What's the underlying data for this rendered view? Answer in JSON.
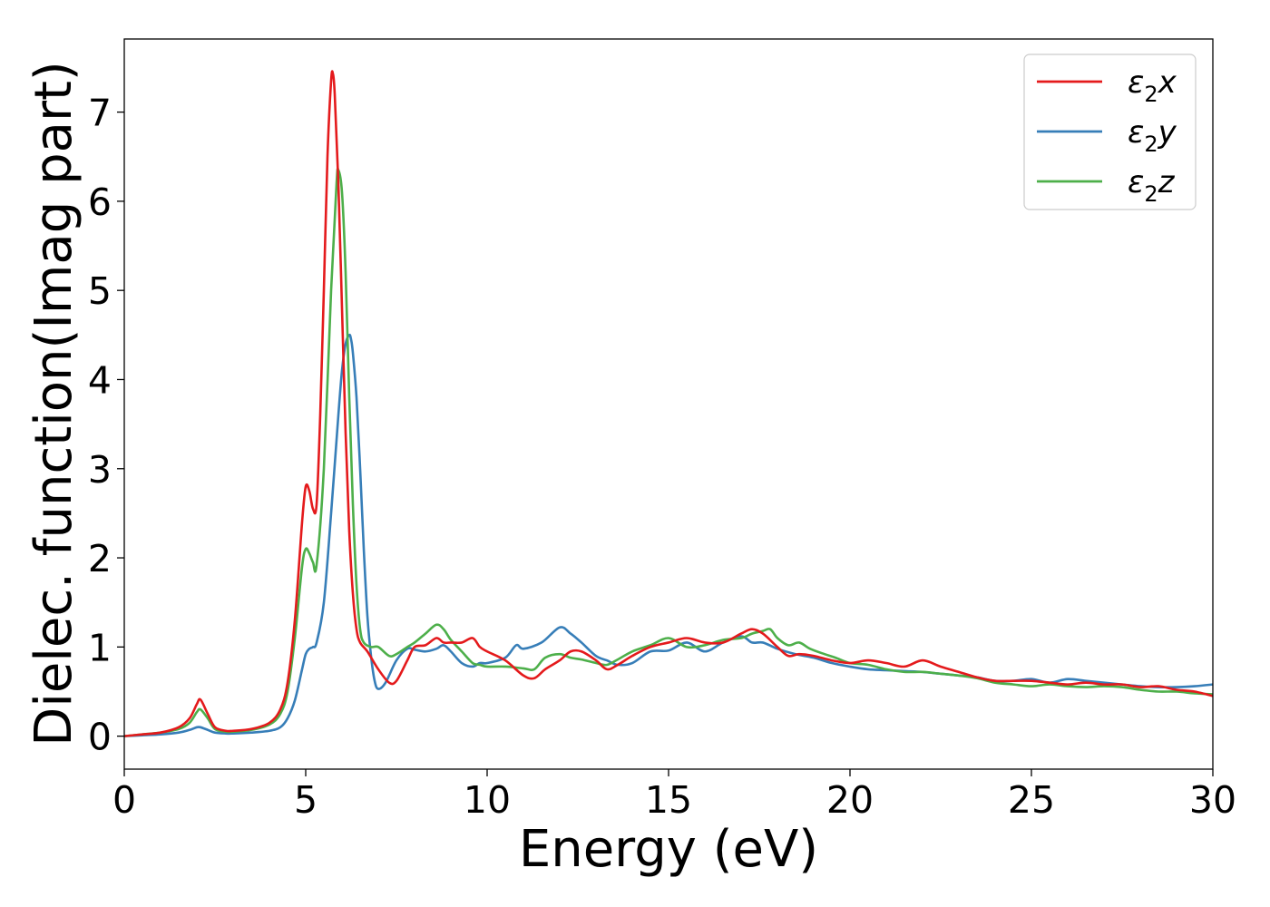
{
  "chart_data": {
    "type": "line",
    "title": "",
    "xlabel": "Energy (eV)",
    "ylabel": "Dielec. function(Imag part)",
    "xlim": [
      0,
      30
    ],
    "ylim": [
      -0.37,
      7.82
    ],
    "x_ticks": [
      0,
      5,
      10,
      15,
      20,
      25,
      30
    ],
    "y_ticks": [
      0,
      1,
      2,
      3,
      4,
      5,
      6,
      7
    ],
    "grid": false,
    "legend_position": "top-right",
    "series": [
      {
        "name": "ε₂x",
        "legend_base": "ε",
        "legend_sub": "2",
        "legend_suffix": "x",
        "color": "#e41a1c",
        "x": [
          0,
          0.5,
          1.0,
          1.5,
          1.8,
          2.0,
          2.1,
          2.3,
          2.5,
          2.8,
          3.0,
          3.5,
          4.0,
          4.3,
          4.5,
          4.7,
          4.9,
          5.0,
          5.1,
          5.2,
          5.3,
          5.4,
          5.5,
          5.6,
          5.7,
          5.75,
          5.8,
          5.9,
          6.0,
          6.1,
          6.2,
          6.3,
          6.4,
          6.5,
          6.7,
          7.0,
          7.3,
          7.5,
          7.8,
          8.0,
          8.3,
          8.6,
          8.8,
          9.0,
          9.3,
          9.6,
          9.8,
          10.0,
          10.5,
          11.0,
          11.3,
          11.6,
          12.0,
          12.3,
          12.6,
          13.0,
          13.3,
          13.6,
          14.0,
          14.5,
          15.0,
          15.5,
          16.0,
          16.5,
          17.0,
          17.3,
          17.6,
          18.0,
          18.3,
          18.6,
          19.0,
          19.5,
          20.0,
          20.5,
          21.0,
          21.5,
          22.0,
          22.5,
          23.0,
          23.5,
          24.0,
          24.5,
          25.0,
          25.5,
          26.0,
          26.5,
          27.0,
          27.5,
          28.0,
          28.5,
          29.0,
          29.5,
          30.0
        ],
        "y": [
          0.0,
          0.02,
          0.04,
          0.1,
          0.2,
          0.36,
          0.41,
          0.25,
          0.1,
          0.06,
          0.06,
          0.08,
          0.15,
          0.3,
          0.6,
          1.3,
          2.4,
          2.8,
          2.75,
          2.55,
          2.6,
          3.6,
          5.0,
          6.5,
          7.35,
          7.43,
          7.2,
          6.2,
          4.8,
          3.4,
          2.3,
          1.6,
          1.2,
          1.05,
          0.95,
          0.75,
          0.6,
          0.62,
          0.85,
          1.0,
          1.02,
          1.1,
          1.05,
          1.05,
          1.05,
          1.1,
          1.0,
          0.95,
          0.85,
          0.68,
          0.65,
          0.75,
          0.85,
          0.95,
          0.95,
          0.85,
          0.75,
          0.8,
          0.9,
          1.0,
          1.05,
          1.1,
          1.05,
          1.05,
          1.15,
          1.2,
          1.15,
          1.0,
          0.9,
          0.92,
          0.9,
          0.85,
          0.82,
          0.85,
          0.82,
          0.78,
          0.85,
          0.78,
          0.72,
          0.66,
          0.62,
          0.62,
          0.62,
          0.6,
          0.58,
          0.6,
          0.58,
          0.58,
          0.55,
          0.56,
          0.52,
          0.5,
          0.45
        ]
      },
      {
        "name": "ε₂y",
        "legend_base": "ε",
        "legend_sub": "2",
        "legend_suffix": "y",
        "color": "#377eb8",
        "x": [
          0,
          0.5,
          1.0,
          1.5,
          1.8,
          2.0,
          2.1,
          2.3,
          2.5,
          2.8,
          3.0,
          3.5,
          4.0,
          4.3,
          4.5,
          4.7,
          4.9,
          5.0,
          5.1,
          5.2,
          5.3,
          5.5,
          5.7,
          5.9,
          6.0,
          6.1,
          6.2,
          6.25,
          6.3,
          6.4,
          6.5,
          6.6,
          6.7,
          6.8,
          6.9,
          7.0,
          7.2,
          7.5,
          7.8,
          8.0,
          8.3,
          8.6,
          8.8,
          9.0,
          9.3,
          9.6,
          9.8,
          10.0,
          10.5,
          10.8,
          11.0,
          11.5,
          12.0,
          12.3,
          12.6,
          13.0,
          13.3,
          13.6,
          14.0,
          14.5,
          15.0,
          15.5,
          16.0,
          16.5,
          17.0,
          17.3,
          17.6,
          18.0,
          18.5,
          19.0,
          19.5,
          20.0,
          20.5,
          21.0,
          21.5,
          22.0,
          22.5,
          23.0,
          23.5,
          24.0,
          24.5,
          25.0,
          25.5,
          26.0,
          26.5,
          27.0,
          27.5,
          28.0,
          28.5,
          29.0,
          29.5,
          30.0
        ],
        "y": [
          0.0,
          0.01,
          0.02,
          0.04,
          0.07,
          0.1,
          0.1,
          0.07,
          0.04,
          0.03,
          0.03,
          0.04,
          0.06,
          0.1,
          0.2,
          0.4,
          0.75,
          0.92,
          0.98,
          1.0,
          1.05,
          1.5,
          2.5,
          3.6,
          4.1,
          4.4,
          4.5,
          4.45,
          4.3,
          3.8,
          3.0,
          2.1,
          1.35,
          0.9,
          0.62,
          0.53,
          0.6,
          0.85,
          0.98,
          0.97,
          0.95,
          0.98,
          1.02,
          0.95,
          0.82,
          0.78,
          0.82,
          0.82,
          0.88,
          1.02,
          0.98,
          1.05,
          1.22,
          1.15,
          1.05,
          0.9,
          0.85,
          0.8,
          0.82,
          0.95,
          0.96,
          1.05,
          0.95,
          1.05,
          1.12,
          1.05,
          1.05,
          0.98,
          0.92,
          0.88,
          0.82,
          0.78,
          0.75,
          0.74,
          0.73,
          0.72,
          0.7,
          0.68,
          0.66,
          0.62,
          0.62,
          0.64,
          0.6,
          0.64,
          0.62,
          0.6,
          0.58,
          0.56,
          0.55,
          0.55,
          0.56,
          0.58
        ]
      },
      {
        "name": "ε₂z",
        "legend_base": "ε",
        "legend_sub": "2",
        "legend_suffix": "z",
        "color": "#4daf4a",
        "x": [
          0,
          0.5,
          1.0,
          1.5,
          1.8,
          2.0,
          2.1,
          2.3,
          2.5,
          2.8,
          3.0,
          3.5,
          4.0,
          4.3,
          4.5,
          4.7,
          4.9,
          5.0,
          5.1,
          5.2,
          5.3,
          5.5,
          5.7,
          5.85,
          5.9,
          6.0,
          6.1,
          6.2,
          6.3,
          6.4,
          6.5,
          6.6,
          6.8,
          7.0,
          7.3,
          7.5,
          7.8,
          8.0,
          8.3,
          8.6,
          8.8,
          9.0,
          9.3,
          9.6,
          9.8,
          10.0,
          10.5,
          11.0,
          11.3,
          11.6,
          12.0,
          12.3,
          12.6,
          13.0,
          13.3,
          13.6,
          14.0,
          14.5,
          15.0,
          15.5,
          16.0,
          16.5,
          17.0,
          17.3,
          17.6,
          17.8,
          18.0,
          18.3,
          18.6,
          18.9,
          19.3,
          19.6,
          20.0,
          20.5,
          21.0,
          21.5,
          22.0,
          22.5,
          23.0,
          23.5,
          24.0,
          24.5,
          25.0,
          25.5,
          26.0,
          26.5,
          27.0,
          27.5,
          28.0,
          28.5,
          29.0,
          29.5,
          30.0
        ],
        "y": [
          0.0,
          0.02,
          0.04,
          0.08,
          0.15,
          0.27,
          0.3,
          0.2,
          0.08,
          0.05,
          0.05,
          0.07,
          0.13,
          0.25,
          0.5,
          1.1,
          1.9,
          2.1,
          2.05,
          1.95,
          1.92,
          3.0,
          5.0,
          6.2,
          6.35,
          6.1,
          5.2,
          3.8,
          2.6,
          1.7,
          1.2,
          1.05,
          1.0,
          1.0,
          0.9,
          0.92,
          1.0,
          1.05,
          1.15,
          1.25,
          1.2,
          1.08,
          0.95,
          0.82,
          0.8,
          0.78,
          0.78,
          0.76,
          0.75,
          0.88,
          0.92,
          0.88,
          0.86,
          0.82,
          0.8,
          0.86,
          0.95,
          1.02,
          1.1,
          1.0,
          1.02,
          1.08,
          1.1,
          1.15,
          1.18,
          1.2,
          1.1,
          1.02,
          1.05,
          0.98,
          0.92,
          0.88,
          0.82,
          0.8,
          0.75,
          0.72,
          0.72,
          0.7,
          0.68,
          0.65,
          0.6,
          0.58,
          0.56,
          0.58,
          0.56,
          0.55,
          0.56,
          0.55,
          0.52,
          0.5,
          0.5,
          0.48,
          0.47
        ]
      }
    ]
  }
}
